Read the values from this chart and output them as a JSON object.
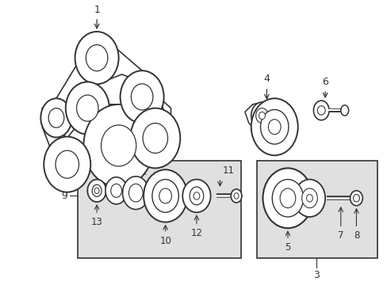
{
  "bg_color": "#ffffff",
  "line_color": "#333333",
  "box_fill": "#e0e0e0",
  "fig_width": 4.89,
  "fig_height": 3.6,
  "dpi": 100
}
